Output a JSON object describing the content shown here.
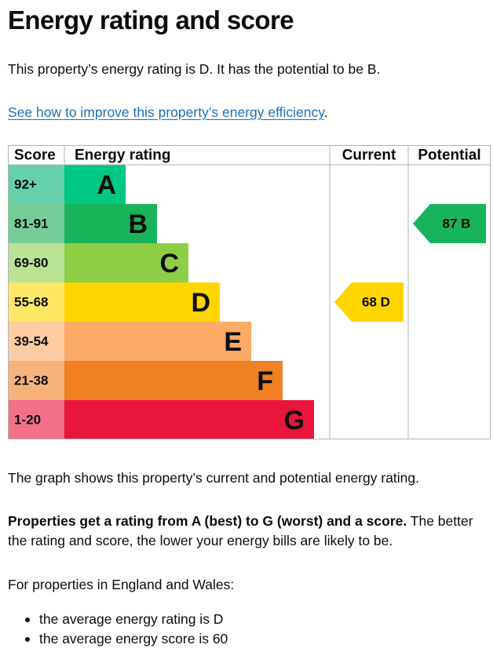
{
  "page": {
    "title": "Energy rating and score",
    "intro": "This property’s energy rating is D. It has the potential to be B.",
    "improve_link": "See how to improve this property’s energy efficiency",
    "improve_link_suffix": ".",
    "graph_note": "The graph shows this property’s current and potential energy rating.",
    "rating_bold": "Properties get a rating from A (best) to G (worst) and a score.",
    "rating_rest": " The better the rating and score, the lower your energy bills are likely to be.",
    "region_intro": "For properties in England and Wales:",
    "bullets": [
      "the average energy rating is D",
      "the average energy score is 60"
    ]
  },
  "chart_data": {
    "type": "bar",
    "headers": {
      "score": "Score",
      "rating": "Energy rating",
      "current": "Current",
      "potential": "Potential"
    },
    "bands": [
      {
        "letter": "A",
        "range": "92+",
        "color": "#00c781",
        "score_bg": "#65d1ab"
      },
      {
        "letter": "B",
        "range": "81-91",
        "color": "#19b459",
        "score_bg": "#75ce99"
      },
      {
        "letter": "C",
        "range": "69-80",
        "color": "#8dce46",
        "score_bg": "#bae395"
      },
      {
        "letter": "D",
        "range": "55-68",
        "color": "#ffd500",
        "score_bg": "#ffe766"
      },
      {
        "letter": "E",
        "range": "39-54",
        "color": "#fcaa65",
        "score_bg": "#fdcca3"
      },
      {
        "letter": "F",
        "range": "21-38",
        "color": "#ef8023",
        "score_bg": "#f5b37b"
      },
      {
        "letter": "G",
        "range": "1-20",
        "color": "#e9153b",
        "score_bg": "#f27189"
      }
    ],
    "current": {
      "score": 68,
      "band": "D",
      "label": "68 D"
    },
    "potential": {
      "score": 87,
      "band": "B",
      "label": "87 B"
    }
  }
}
